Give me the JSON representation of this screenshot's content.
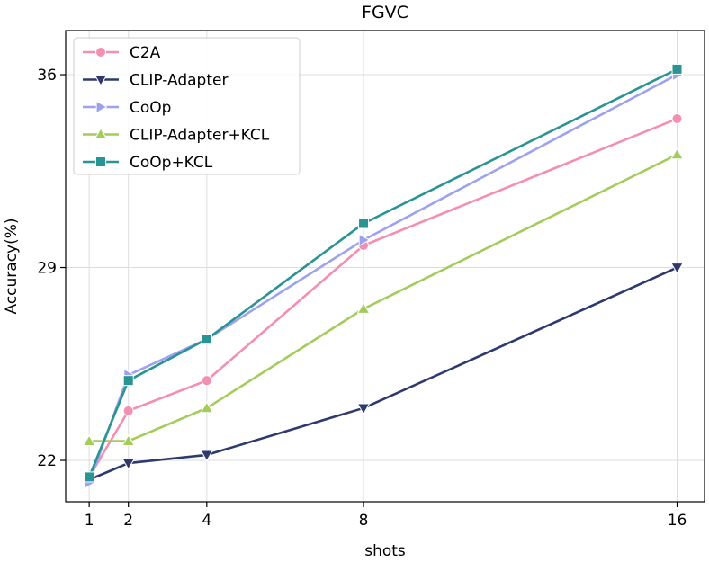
{
  "chart_data": {
    "type": "line",
    "title": "FGVC",
    "xlabel": "shots",
    "ylabel": "Accuracy(%)",
    "x": [
      1,
      2,
      4,
      8,
      16
    ],
    "xticks": [
      1,
      2,
      4,
      8,
      16
    ],
    "yticks": [
      22,
      29,
      36
    ],
    "xlim": [
      0.4,
      16.7
    ],
    "ylim": [
      20.5,
      37.6
    ],
    "grid": true,
    "legend_position": "top-left",
    "series": [
      {
        "name": "C2A",
        "color": "#f48fb1",
        "marker": "circle",
        "values": [
          21.4,
          23.8,
          24.9,
          29.8,
          34.4
        ]
      },
      {
        "name": "CLIP-Adapter",
        "color": "#2e3a6e",
        "marker": "triangle-down",
        "values": [
          21.3,
          21.9,
          22.2,
          23.9,
          29.0
        ]
      },
      {
        "name": "CoOp",
        "color": "#9ea2ee",
        "marker": "triangle-right",
        "values": [
          21.2,
          25.1,
          26.4,
          30.0,
          36.0
        ]
      },
      {
        "name": "CLIP-Adapter+KCL",
        "color": "#a3cc5a",
        "marker": "triangle-up",
        "values": [
          22.7,
          22.7,
          23.9,
          27.5,
          33.1
        ]
      },
      {
        "name": "CoOp+KCL",
        "color": "#2a9393",
        "marker": "square",
        "values": [
          21.4,
          24.9,
          26.4,
          30.6,
          36.2
        ]
      }
    ]
  }
}
